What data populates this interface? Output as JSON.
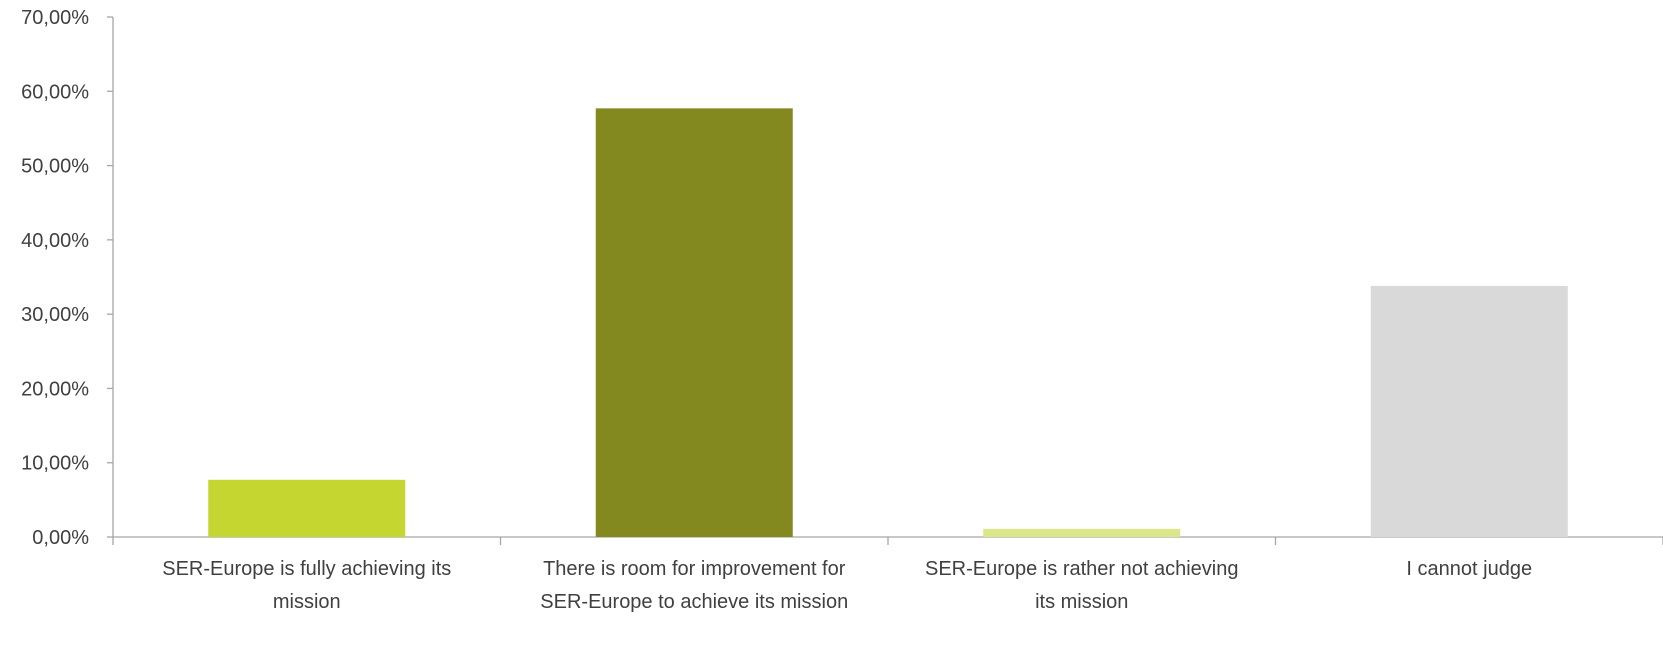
{
  "chart_data": {
    "type": "bar",
    "categories": [
      [
        "SER-Europe is fully achieving its",
        "mission"
      ],
      [
        "There is room for improvement for",
        "SER-Europe to achieve its mission"
      ],
      [
        "SER-Europe is rather not achieving",
        "its mission"
      ],
      [
        "I cannot judge"
      ]
    ],
    "values": [
      7.7,
      57.7,
      1.1,
      33.8
    ],
    "colors": [
      "#c6d630",
      "#83891f",
      "#dce68a",
      "#d9d9d9"
    ],
    "ylim": [
      0,
      70
    ],
    "yticks": [
      0,
      10,
      20,
      30,
      40,
      50,
      60,
      70
    ],
    "ytick_labels": [
      "0,00%",
      "10,00%",
      "20,00%",
      "30,00%",
      "40,00%",
      "50,00%",
      "60,00%",
      "70,00%"
    ],
    "title": "",
    "xlabel": "",
    "ylabel": "",
    "grid": false,
    "legend": "none"
  }
}
